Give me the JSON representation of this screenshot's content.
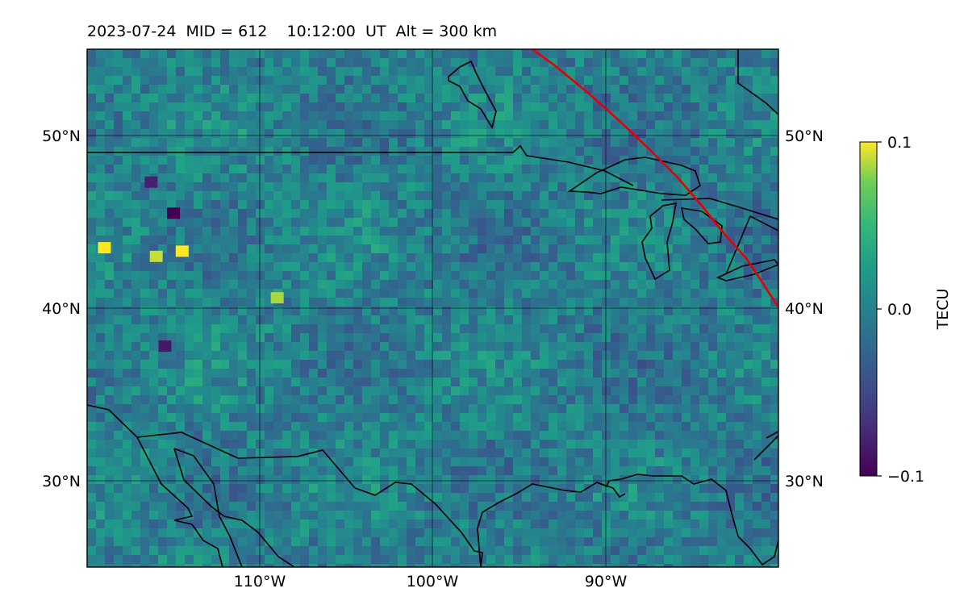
{
  "title": "2023-07-24  MID = 612    10:12:00  UT  Alt = 300 km",
  "map": {
    "lat_range": [
      25,
      55
    ],
    "lon_range": [
      -120,
      -80
    ],
    "lat_ticks": [
      {
        "value": 50,
        "label": "50°N"
      },
      {
        "value": 40,
        "label": "40°N"
      },
      {
        "value": 30,
        "label": "30°N"
      }
    ],
    "lon_ticks": [
      {
        "value": -110,
        "label": "110°W"
      },
      {
        "value": -100,
        "label": "100°W"
      },
      {
        "value": -90,
        "label": "90°W"
      }
    ],
    "grid": true,
    "track_color": "#e60000",
    "coastline_color": "#000000"
  },
  "colorbar": {
    "label": "TECU",
    "min": -0.1,
    "max": 0.1,
    "ticks": [
      {
        "value": 0.1,
        "label": "0.1"
      },
      {
        "value": 0.0,
        "label": "0.0"
      },
      {
        "value": -0.1,
        "label": "−0.1"
      }
    ],
    "colormap": "viridis"
  },
  "hotspots": [
    {
      "lat": 43.5,
      "lon": -119,
      "value": 0.1
    },
    {
      "lat": 43.0,
      "lon": -116,
      "value": 0.09
    },
    {
      "lat": 43.3,
      "lon": -114.5,
      "value": 0.1
    },
    {
      "lat": 40.6,
      "lon": -109,
      "value": 0.085
    },
    {
      "lat": 45.5,
      "lon": -115,
      "value": -0.1
    },
    {
      "lat": 47.3,
      "lon": -116.3,
      "value": -0.08
    },
    {
      "lat": 37.8,
      "lon": -115.5,
      "value": -0.085
    }
  ]
}
